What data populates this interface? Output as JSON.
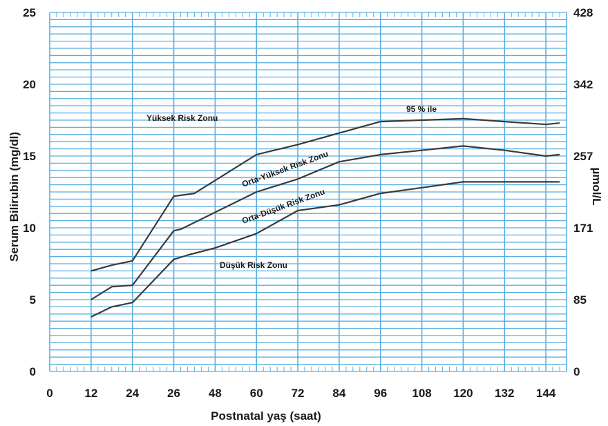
{
  "chart_data": {
    "type": "line",
    "xlabel": "Postnatal yaş (saat)",
    "ylabel": "Serum Bilirubin (mg/dl)",
    "y2label": "µmol/L",
    "x_tick_labels": [
      "0",
      "12",
      "24",
      "26",
      "48",
      "60",
      "72",
      "84",
      "96",
      "108",
      "120",
      "132",
      "144"
    ],
    "y_tick_labels": [
      "0",
      "5",
      "10",
      "15",
      "20",
      "25"
    ],
    "y2_tick_labels": [
      "0",
      "85",
      "171",
      "257",
      "342",
      "428"
    ],
    "xlim": [
      0,
      150
    ],
    "ylim": [
      0,
      25
    ],
    "grid": true,
    "colors": {
      "background": "#ffffff",
      "grid": "#5aaee0",
      "line": "#3a3a3a",
      "text": "#1a1a1a"
    },
    "series": [
      {
        "name": "95 % ile",
        "x": [
          12,
          18,
          24,
          36,
          42,
          60,
          72,
          84,
          96,
          108,
          120,
          132,
          144,
          148
        ],
        "y": [
          7.0,
          7.4,
          7.7,
          12.2,
          12.4,
          15.1,
          15.8,
          16.6,
          17.4,
          17.5,
          17.6,
          17.4,
          17.2,
          17.3
        ]
      },
      {
        "name": "",
        "x": [
          12,
          18,
          24,
          36,
          38,
          60,
          72,
          84,
          96,
          108,
          120,
          132,
          144,
          148
        ],
        "y": [
          5.0,
          5.9,
          6.0,
          9.8,
          9.9,
          12.5,
          13.4,
          14.6,
          15.1,
          15.4,
          15.7,
          15.4,
          15.0,
          15.1
        ]
      },
      {
        "name": "",
        "x": [
          12,
          18,
          24,
          36,
          40,
          48,
          60,
          72,
          84,
          96,
          108,
          120,
          132,
          144,
          148
        ],
        "y": [
          3.8,
          4.5,
          4.8,
          7.8,
          8.1,
          8.6,
          9.6,
          11.2,
          11.6,
          12.4,
          12.8,
          13.2,
          13.2,
          13.2,
          13.2
        ]
      }
    ],
    "zone_labels": [
      "Yüksek Risk Zonu",
      "Orta-Yüksek Risk Zonu",
      "Orta-Düşük Risk Zonu",
      "Düşük Risk Zonu",
      "95 % ile"
    ]
  }
}
